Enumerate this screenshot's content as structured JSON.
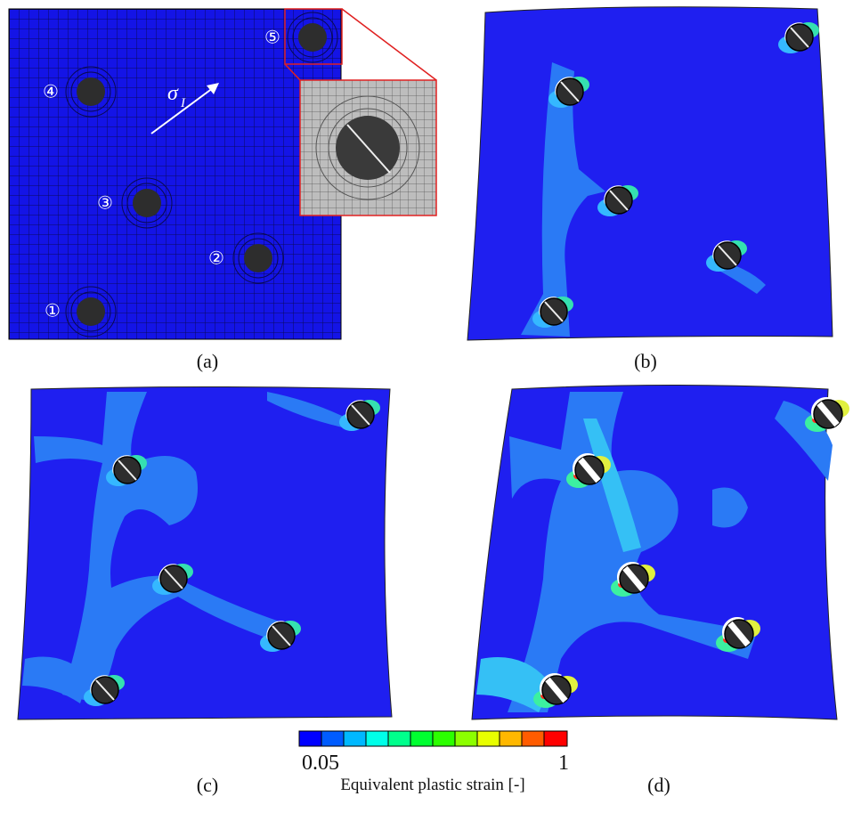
{
  "panels": [
    {
      "label": "(a)"
    },
    {
      "label": "(b)"
    },
    {
      "label": "(c)"
    },
    {
      "label": "(d)"
    }
  ],
  "particles": [
    "①",
    "②",
    "③",
    "④",
    "⑤"
  ],
  "stress_symbol": "σ",
  "stress_subscript": "I",
  "colorbar": {
    "min_label": "0.05",
    "max_label": "1",
    "title": "Equivalent plastic strain [-]"
  }
}
